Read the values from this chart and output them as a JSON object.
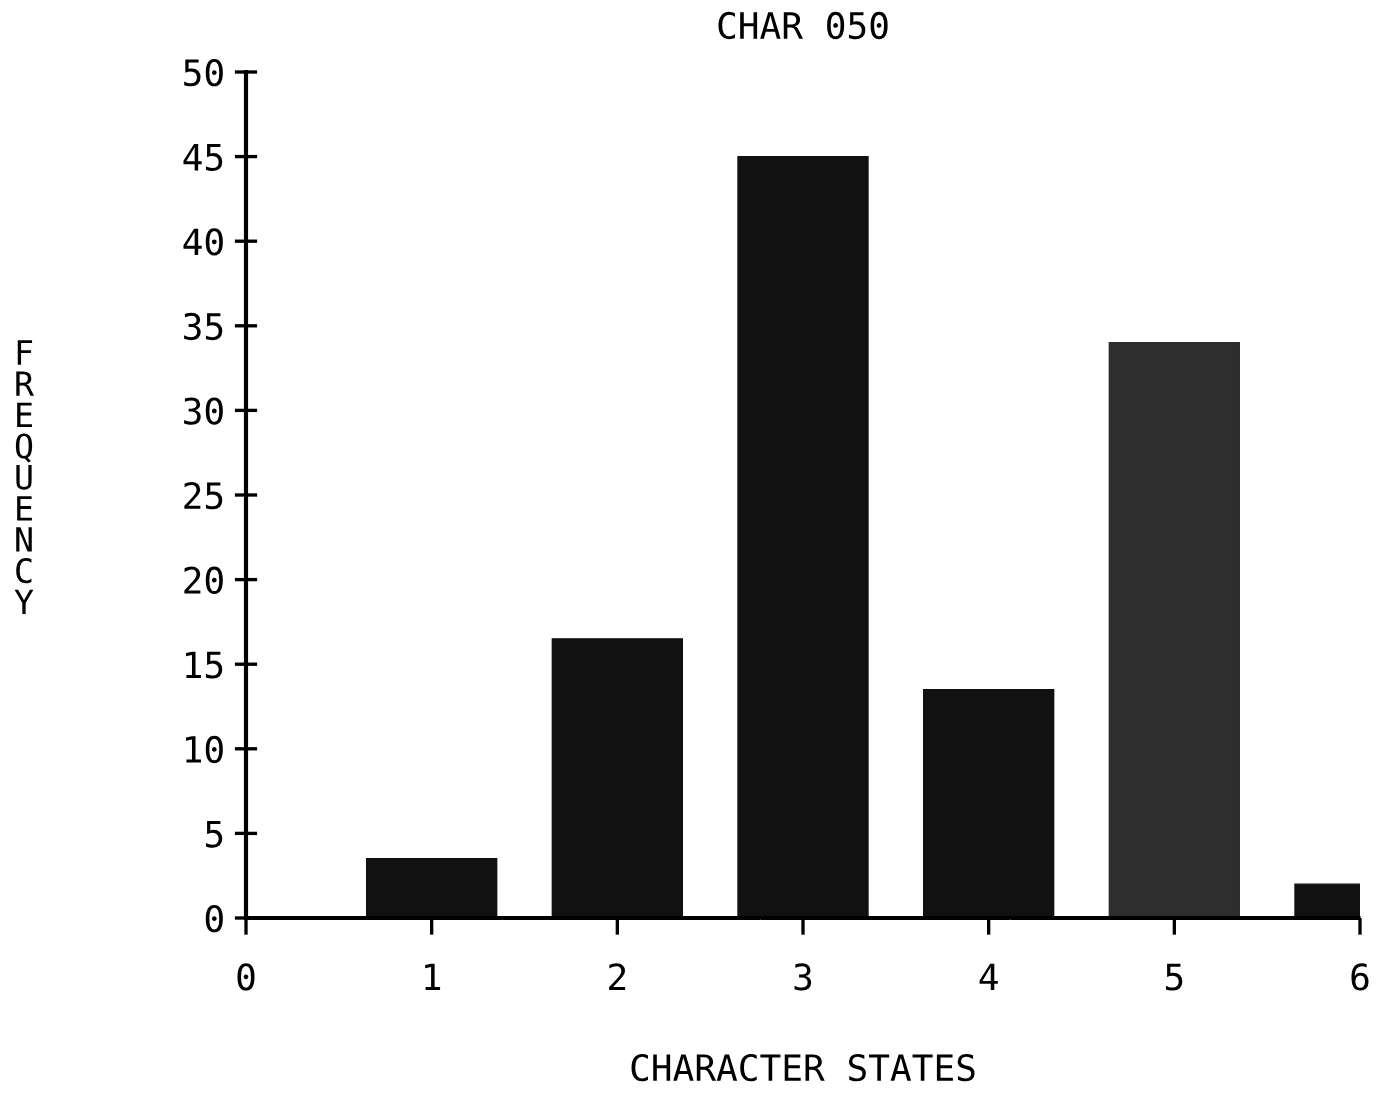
{
  "chart_data": {
    "type": "bar",
    "title": "CHAR 050",
    "xlabel": "CHARACTER STATES",
    "ylabel": "FREQUENCY",
    "x": [
      1,
      2,
      3,
      4,
      5,
      6
    ],
    "values": [
      3.5,
      16.5,
      45,
      13.5,
      34,
      2
    ],
    "colors": [
      "#111111",
      "#111111",
      "#111111",
      "#111111",
      "#2e2e2e",
      "#111111"
    ],
    "xlim": [
      0,
      6
    ],
    "xticks": [
      0,
      1,
      2,
      3,
      4,
      5,
      6
    ],
    "ylim": [
      0,
      50
    ],
    "yticks": [
      0,
      5,
      10,
      15,
      20,
      25,
      30,
      35,
      40,
      45,
      50
    ],
    "grid": false,
    "legend": false
  }
}
